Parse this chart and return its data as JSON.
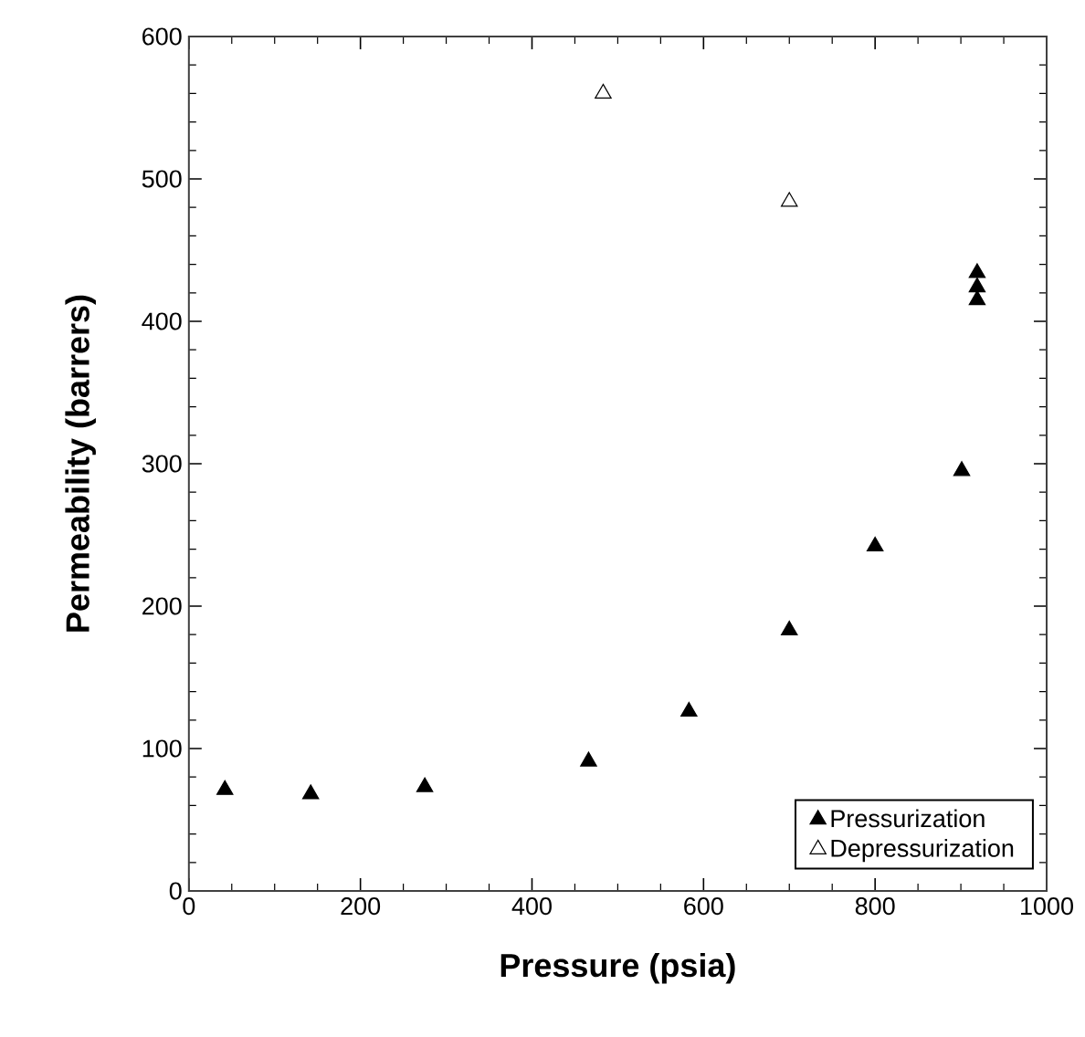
{
  "chart_data": {
    "type": "scatter",
    "xlabel": "Pressure (psia)",
    "ylabel": "Permeability  (barrers)",
    "xlim": [
      0,
      1000
    ],
    "ylim": [
      0,
      600
    ],
    "xticks": [
      0,
      200,
      400,
      600,
      800,
      1000
    ],
    "yticks": [
      0,
      100,
      200,
      300,
      400,
      500,
      600
    ],
    "marker": "triangle",
    "legend": "bottom right",
    "grid": false,
    "series": [
      {
        "name": "Pressurization",
        "color": "#000000",
        "x": [
          42,
          142,
          275,
          466,
          583,
          700,
          800,
          901,
          919,
          919,
          919
        ],
        "values": [
          71,
          68,
          73,
          91,
          126,
          183,
          242,
          295,
          434,
          424,
          415
        ]
      },
      {
        "name": "Depressurization",
        "color": "#ffffff",
        "x": [
          483,
          700
        ],
        "values": [
          560,
          484
        ]
      }
    ]
  }
}
